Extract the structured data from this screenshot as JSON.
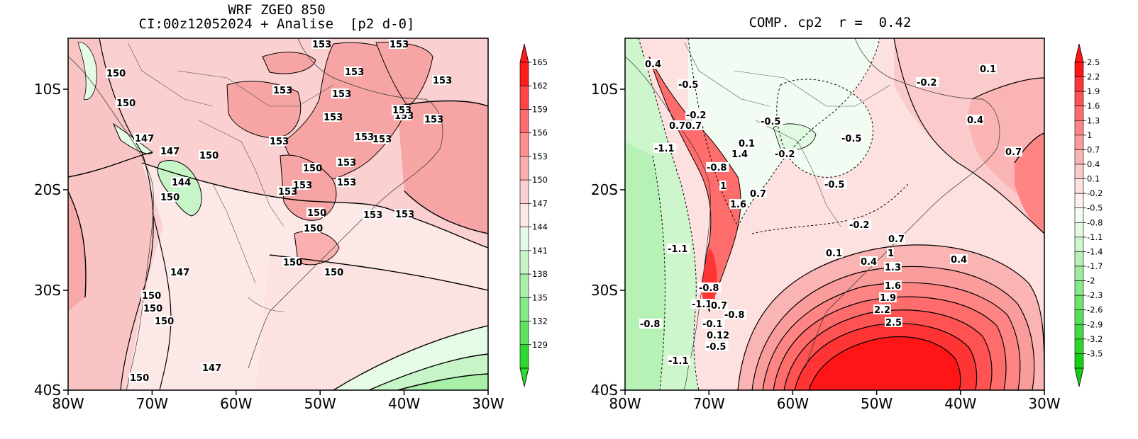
{
  "left_panel": {
    "title_line1": "WRF ZGEO 850",
    "title_line2": "CI:00z12052024 + Analise  [p2 d-0]",
    "contour_labels": [
      "150",
      "150",
      "147",
      "147",
      "150",
      "144",
      "150",
      "153",
      "153",
      "153",
      "153",
      "153",
      "153",
      "153",
      "150",
      "153",
      "153",
      "153",
      "153",
      "153",
      "150",
      "150",
      "147",
      "150",
      "150",
      "150",
      "150",
      "150",
      "147",
      "150",
      "153",
      "153",
      "153",
      "153",
      "153",
      "153",
      "153"
    ],
    "colorbar": {
      "labels": [
        "165",
        "162",
        "159",
        "156",
        "153",
        "150",
        "147",
        "144",
        "141",
        "138",
        "135",
        "132",
        "129"
      ],
      "colors": [
        "#ff1a1a",
        "#ff4545",
        "#ff6e6e",
        "#ff9090",
        "#fbb0b0",
        "#fcd0d0",
        "#fde8e8",
        "#e6fbe6",
        "#c8f5c8",
        "#a8f0a8",
        "#86ea86",
        "#5ee25e",
        "#2ed82e"
      ]
    },
    "x_ticks": [
      "80W",
      "70W",
      "60W",
      "50W",
      "40W",
      "30W"
    ],
    "y_ticks": [
      "10S",
      "20S",
      "30S",
      "40S"
    ]
  },
  "right_panel": {
    "title": "COMP. cp2  r =  0.42",
    "contour_labels": [
      "0.4",
      "-0.5",
      "-0.2",
      "0.7",
      "0.7",
      "-1.1",
      "-0.5",
      "0.1",
      "1.4",
      "-0.2",
      "-0.5",
      "-0.8",
      "-0.5",
      "1",
      "0.7",
      "1.6",
      "-0.2",
      "0.1",
      "0.4",
      "1",
      "1.3",
      "1.6",
      "1.9",
      "2.2",
      "2.5",
      "0.7",
      "0.4",
      "-1.1",
      "-0.8",
      "-1.1",
      "0.7",
      "-0.8",
      "-0.8",
      "-0.1",
      "0.12",
      "-0.5",
      "-1.1",
      "0.1",
      "-0.2",
      "0.4",
      "0.7"
    ],
    "colorbar": {
      "labels": [
        "2.5",
        "2.2",
        "1.9",
        "1.6",
        "1.3",
        "1",
        "0.7",
        "0.4",
        "0.1",
        "-0.2",
        "-0.5",
        "-0.8",
        "-1.1",
        "-1.4",
        "-1.7",
        "-2",
        "-2.3",
        "-2.6",
        "-2.9",
        "-3.2",
        "-3.5"
      ],
      "colors": [
        "#ff1515",
        "#ff3535",
        "#ff5252",
        "#ff6c6c",
        "#ff8585",
        "#fb9c9c",
        "#fbb4b4",
        "#fbcaca",
        "#fde0e0",
        "#fff0f0",
        "#f2fcf2",
        "#e2f9e2",
        "#cdf6cd",
        "#b6f2b6",
        "#9eed9e",
        "#86e886",
        "#6ee36e",
        "#58de58",
        "#42d942",
        "#2cd42c",
        "#15cf15"
      ]
    },
    "x_ticks": [
      "80W",
      "70W",
      "60W",
      "50W",
      "40W",
      "30W"
    ],
    "y_ticks": [
      "10S",
      "20S",
      "30S",
      "40S"
    ]
  }
}
